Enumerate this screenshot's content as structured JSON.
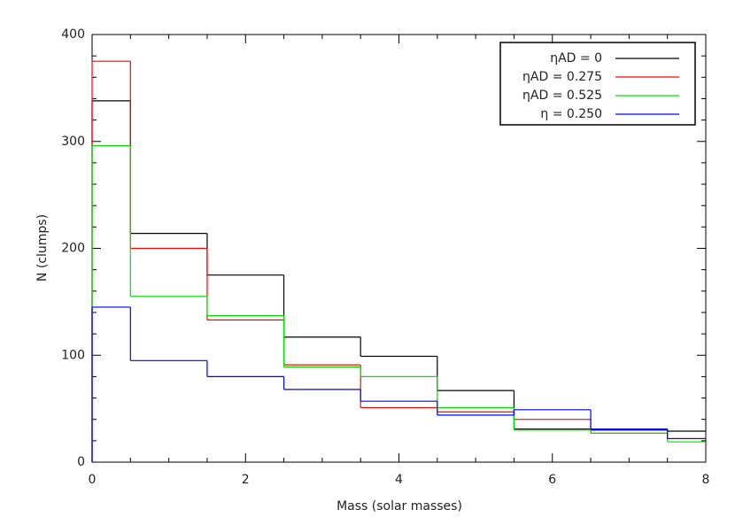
{
  "chart_data": {
    "type": "histogram",
    "xlabel": "Mass (solar masses)",
    "ylabel": "N (clumps)",
    "bins": [
      0,
      0.5,
      1.5,
      2.5,
      3.5,
      4.5,
      5.5,
      6.5,
      7.5,
      8
    ],
    "series": [
      {
        "name": "ηAD = 0",
        "color": "#000000",
        "values": [
          338,
          214,
          175,
          117,
          99,
          67,
          31,
          30,
          29
        ]
      },
      {
        "name": "ηAD = 0.275",
        "color": "#ff0000",
        "values": [
          375,
          200,
          133,
          91,
          51,
          47,
          40,
          27,
          22
        ]
      },
      {
        "name": "ηAD = 0.525",
        "color": "#00e000",
        "values": [
          296,
          155,
          137,
          89,
          80,
          51,
          30,
          27,
          19
        ]
      },
      {
        "name": "η = 0.250",
        "color": "#0000ff",
        "values": [
          145,
          95,
          80,
          68,
          57,
          44,
          49,
          31,
          22
        ]
      }
    ],
    "xlim": [
      0,
      8
    ],
    "xticks": [
      0,
      2,
      4,
      6,
      8
    ],
    "ylim": [
      0,
      400
    ],
    "yticks": [
      0,
      100,
      200,
      300,
      400
    ],
    "legend": "upper right"
  }
}
